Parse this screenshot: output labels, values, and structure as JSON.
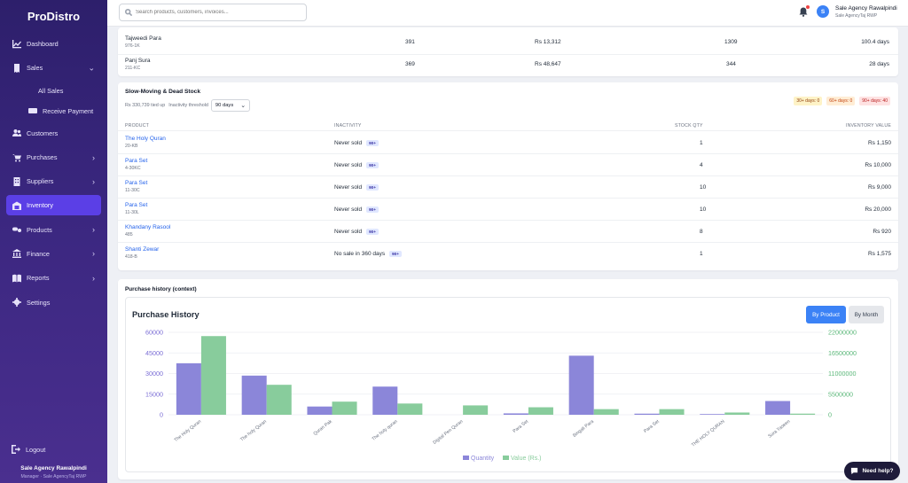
{
  "app": {
    "title": "ProDistro"
  },
  "sidebar": {
    "items": [
      {
        "label": "Dashboard",
        "icon": "dashboard-icon"
      },
      {
        "label": "Sales",
        "icon": "receipt-icon",
        "expanded": true
      },
      {
        "label": "All Sales",
        "icon": ""
      },
      {
        "label": "Receive Payment",
        "icon": "money-icon"
      },
      {
        "label": "Customers",
        "icon": "users-icon"
      },
      {
        "label": "Purchases",
        "icon": "cart-icon"
      },
      {
        "label": "Suppliers",
        "icon": "building-icon"
      },
      {
        "label": "Inventory",
        "icon": "warehouse-icon",
        "active": true
      },
      {
        "label": "Products",
        "icon": "pills-icon"
      },
      {
        "label": "Finance",
        "icon": "bank-icon"
      },
      {
        "label": "Reports",
        "icon": "book-icon"
      },
      {
        "label": "Settings",
        "icon": "gear-icon"
      }
    ],
    "logout": "Logout",
    "user_name": "Sale Agency Rawalpindi",
    "user_role": "Manager · Sale AgencyTaj RWP"
  },
  "topbar": {
    "search_placeholder": "Search products, customers, invoices...",
    "avatar_initial": "S",
    "user_name": "Sale Agency Rawalpindi",
    "user_sub": "Sale AgencyTaj RWP"
  },
  "top_rows": [
    {
      "name": "Tajweedi Para",
      "code": "976-1K",
      "qty": "391",
      "value": "Rs 13,312",
      "stock": "1309",
      "days": "100.4 days"
    },
    {
      "name": "Panj Sura",
      "code": "211-KC",
      "qty": "369",
      "value": "Rs 48,647",
      "stock": "344",
      "days": "28 days"
    }
  ],
  "slow_moving": {
    "title": "Slow-Moving & Dead Stock",
    "tied_up": "Rs 330,739 tied up",
    "threshold_label": "Inactivity threshold",
    "threshold_value": "90 days",
    "age_badges": [
      {
        "label": "30+ days: 0",
        "bg": "#fef3c7",
        "fg": "#92400e"
      },
      {
        "label": "60+ days: 0",
        "bg": "#ffedd5",
        "fg": "#c2410c"
      },
      {
        "label": "90+ days: 40",
        "bg": "#fee2e2",
        "fg": "#b91c1c"
      }
    ],
    "columns": [
      "PRODUCT",
      "INACTIVITY",
      "STOCK QTY",
      "INVENTORY VALUE"
    ],
    "rows": [
      {
        "name": "The Holy Quran",
        "code": "20-KB",
        "inactivity": "Never sold",
        "badge": "90+",
        "qty": "1",
        "value": "Rs 1,150"
      },
      {
        "name": "Para Set",
        "code": "4-30KC",
        "inactivity": "Never sold",
        "badge": "90+",
        "qty": "4",
        "value": "Rs 10,000"
      },
      {
        "name": "Para Set",
        "code": "11-30C",
        "inactivity": "Never sold",
        "badge": "90+",
        "qty": "10",
        "value": "Rs 9,000"
      },
      {
        "name": "Para Set",
        "code": "11-30L",
        "inactivity": "Never sold",
        "badge": "90+",
        "qty": "10",
        "value": "Rs 20,000"
      },
      {
        "name": "Khandany Rasool",
        "code": "485",
        "inactivity": "Never sold",
        "badge": "90+",
        "qty": "8",
        "value": "Rs 920"
      },
      {
        "name": "Shanti Zewar",
        "code": "418-B",
        "inactivity": "No sale in 360 days",
        "badge": "90+",
        "qty": "1",
        "value": "Rs 1,575"
      }
    ]
  },
  "purchase_history": {
    "section_title": "Purchase history (context)",
    "chart_title": "Purchase History",
    "btn_by_product": "By Product",
    "btn_by_month": "By Month"
  },
  "chart_data": {
    "type": "bar",
    "title": "Purchase History",
    "categories": [
      "The Holy Quran",
      "The holy Quran",
      "Quran Pak",
      "The holy quran",
      "Digital Pen Quran",
      "Para Set",
      "Bingali Para",
      "Para Set",
      "THE HOLY QURAN",
      "Sura Yaseen"
    ],
    "series": [
      {
        "name": "Quantity",
        "axis": "left",
        "color": "#8b86d9",
        "values": [
          37500,
          28500,
          6000,
          20500,
          0,
          1000,
          43000,
          800,
          500,
          10000
        ]
      },
      {
        "name": "Value (Rs.)",
        "axis": "right",
        "color": "#88cc9c",
        "values": [
          21000000,
          8000000,
          3500000,
          3000000,
          2500000,
          2000000,
          1500000,
          1500000,
          600000,
          300000
        ]
      }
    ],
    "y_left": {
      "ticks": [
        "0",
        "15000",
        "30000",
        "45000",
        "60000"
      ],
      "max": 60000,
      "color": "#7c6fd6"
    },
    "y_right": {
      "ticks": [
        "0",
        "5500000",
        "11000000",
        "16500000",
        "22000000"
      ],
      "max": 22000000,
      "color": "#5cb87a"
    },
    "legend_position": "bottom"
  },
  "help": {
    "label": "Need help?"
  }
}
